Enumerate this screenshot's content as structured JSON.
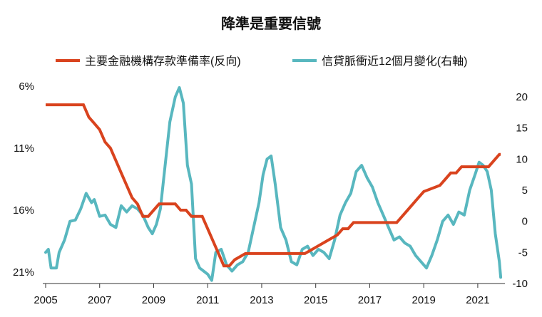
{
  "chart_data": {
    "type": "line",
    "title": "降準是重要信號",
    "legend_position": "top",
    "grid": false,
    "x_range": [
      2005,
      2021.9
    ],
    "x_ticks": [
      2005,
      2007,
      2009,
      2011,
      2013,
      2015,
      2017,
      2019,
      2021
    ],
    "y_left": {
      "range": [
        6,
        21
      ],
      "inverted": true,
      "ticks": [
        "6%",
        "11%",
        "16%",
        "21%"
      ],
      "tick_values": [
        6,
        11,
        16,
        21
      ]
    },
    "y_right": {
      "range": [
        -10,
        20
      ],
      "ticks": [
        "20",
        "15",
        "10",
        "5",
        "0",
        "-5",
        "-10"
      ],
      "tick_values": [
        20,
        15,
        10,
        5,
        0,
        -5,
        -10
      ]
    },
    "series": [
      {
        "name": "主要金融機構存款準備率(反向)",
        "color": "#d9431e",
        "axis": "left",
        "x": [
          2005.0,
          2006.4,
          2006.6,
          2006.8,
          2007.0,
          2007.2,
          2007.4,
          2007.6,
          2007.8,
          2008.0,
          2008.2,
          2008.4,
          2008.6,
          2008.8,
          2009.0,
          2009.2,
          2009.4,
          2009.8,
          2010.0,
          2010.2,
          2010.4,
          2010.8,
          2011.0,
          2011.2,
          2011.4,
          2011.6,
          2011.8,
          2012.0,
          2012.4,
          2014.6,
          2015.0,
          2015.4,
          2015.8,
          2016.0,
          2016.2,
          2016.4,
          2016.6,
          2018.0,
          2018.2,
          2018.4,
          2018.6,
          2018.8,
          2019.0,
          2019.6,
          2019.8,
          2020.0,
          2020.2,
          2020.4,
          2021.4,
          2021.6,
          2021.8,
          2021.85
        ],
        "values": [
          7.5,
          7.5,
          8.5,
          9.0,
          9.5,
          10.5,
          11.0,
          12.0,
          13.0,
          14.0,
          15.0,
          15.5,
          16.5,
          16.5,
          16.0,
          15.5,
          15.5,
          15.5,
          16.0,
          16.0,
          16.5,
          16.5,
          17.5,
          18.5,
          19.5,
          20.5,
          20.5,
          20.0,
          19.5,
          19.5,
          19.0,
          18.5,
          18.0,
          17.5,
          17.5,
          17.0,
          17.0,
          17.0,
          16.5,
          16.0,
          15.5,
          15.0,
          14.5,
          14.0,
          13.5,
          13.0,
          13.0,
          12.5,
          12.5,
          12.0,
          11.5,
          11.5
        ]
      },
      {
        "name": "信貸脈衝近12個月變化(右軸)",
        "color": "#58b7bf",
        "axis": "right",
        "x": [
          2005.0,
          2005.1,
          2005.2,
          2005.4,
          2005.5,
          2005.7,
          2005.9,
          2006.1,
          2006.3,
          2006.5,
          2006.7,
          2006.8,
          2007.0,
          2007.2,
          2007.4,
          2007.6,
          2007.8,
          2008.0,
          2008.2,
          2008.4,
          2008.6,
          2008.8,
          2008.95,
          2009.1,
          2009.25,
          2009.4,
          2009.6,
          2009.8,
          2009.95,
          2010.1,
          2010.25,
          2010.4,
          2010.55,
          2010.7,
          2010.85,
          2011.0,
          2011.15,
          2011.3,
          2011.5,
          2011.7,
          2011.9,
          2012.1,
          2012.3,
          2012.5,
          2012.7,
          2012.9,
          2013.05,
          2013.2,
          2013.35,
          2013.5,
          2013.7,
          2013.9,
          2014.1,
          2014.3,
          2014.5,
          2014.7,
          2014.9,
          2015.1,
          2015.3,
          2015.5,
          2015.7,
          2015.9,
          2016.1,
          2016.3,
          2016.5,
          2016.7,
          2016.9,
          2017.1,
          2017.3,
          2017.5,
          2017.7,
          2017.9,
          2018.1,
          2018.3,
          2018.5,
          2018.7,
          2018.9,
          2019.1,
          2019.3,
          2019.5,
          2019.7,
          2019.9,
          2020.1,
          2020.3,
          2020.5,
          2020.7,
          2020.9,
          2021.05,
          2021.2,
          2021.35,
          2021.5,
          2021.65,
          2021.8,
          2021.85
        ],
        "values": [
          -5,
          -4.5,
          -7.5,
          -7.5,
          -5,
          -3,
          0,
          0.2,
          2,
          4.5,
          3,
          3.5,
          0.8,
          1,
          -0.5,
          -1,
          2.5,
          1.5,
          2.5,
          2,
          1,
          -1,
          -2,
          -0.5,
          2,
          8,
          16,
          20,
          21.5,
          19,
          9,
          6,
          -6,
          -7.5,
          -8,
          -8.5,
          -9.5,
          -5,
          -4.5,
          -7,
          -8,
          -7,
          -6.5,
          -5,
          -1,
          3,
          7.5,
          10,
          10.5,
          6,
          -1,
          -3,
          -6.5,
          -7,
          -4.5,
          -4,
          -5.5,
          -4.5,
          -5,
          -6,
          -3,
          1,
          3,
          4.5,
          8,
          9,
          7,
          5.5,
          3,
          1,
          -1,
          -3,
          -2.5,
          -3.5,
          -4,
          -5.5,
          -6.5,
          -7.5,
          -5.5,
          -3,
          0,
          1,
          -0.5,
          1.5,
          1,
          5,
          7.5,
          9.5,
          9,
          8,
          5,
          -2,
          -6.5,
          -9
        ]
      }
    ]
  }
}
